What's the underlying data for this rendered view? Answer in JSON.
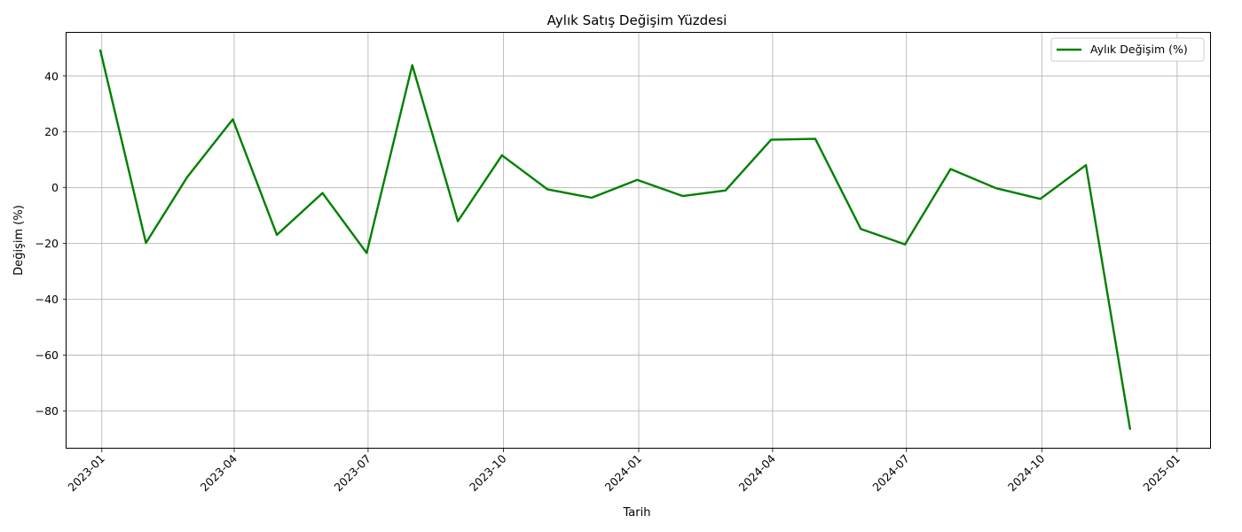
{
  "chart_data": {
    "type": "line",
    "title": "Aylık Satış Değişim Yüzdesi",
    "xlabel": "Tarih",
    "ylabel": "Değişim (%)",
    "grid": true,
    "legend": "top-right",
    "line_color": "#008000",
    "x_range": [
      "2022-12-08",
      "2025-01-24"
    ],
    "ylim": [
      -93.5,
      55.5
    ],
    "y_ticks": [
      -80,
      -60,
      -40,
      -20,
      0,
      20,
      40
    ],
    "y_tick_labels": [
      "−80",
      "−60",
      "−40",
      "−20",
      "0",
      "20",
      "40"
    ],
    "x_ticks": [
      "2023-01-01",
      "2023-04-01",
      "2023-07-01",
      "2023-10-01",
      "2024-01-01",
      "2024-04-01",
      "2024-07-01",
      "2024-10-01",
      "2025-01-01"
    ],
    "x_tick_labels": [
      "2023-01",
      "2023-04",
      "2023-07",
      "2023-10",
      "2024-01",
      "2024-04",
      "2024-07",
      "2024-10",
      "2025-01"
    ],
    "series": [
      {
        "name": "Aylık Değişim (%)",
        "x": [
          "2022-12-31",
          "2023-01-31",
          "2023-02-28",
          "2023-03-31",
          "2023-04-30",
          "2023-05-31",
          "2023-06-30",
          "2023-07-31",
          "2023-08-31",
          "2023-09-30",
          "2023-10-31",
          "2023-11-30",
          "2023-12-31",
          "2024-01-31",
          "2024-02-29",
          "2024-03-31",
          "2024-04-30",
          "2024-05-31",
          "2024-06-30",
          "2024-07-31",
          "2024-08-31",
          "2024-09-30",
          "2024-10-31",
          "2024-11-30"
        ],
        "values": [
          49.2,
          -19.8,
          3.8,
          24.5,
          -16.9,
          -1.9,
          -23.4,
          43.9,
          -12.0,
          11.6,
          -0.6,
          -3.6,
          2.8,
          -3.0,
          -1.0,
          17.2,
          17.5,
          -14.8,
          -20.3,
          6.7,
          -0.2,
          -4.0,
          8.1,
          -86.4
        ]
      }
    ]
  }
}
